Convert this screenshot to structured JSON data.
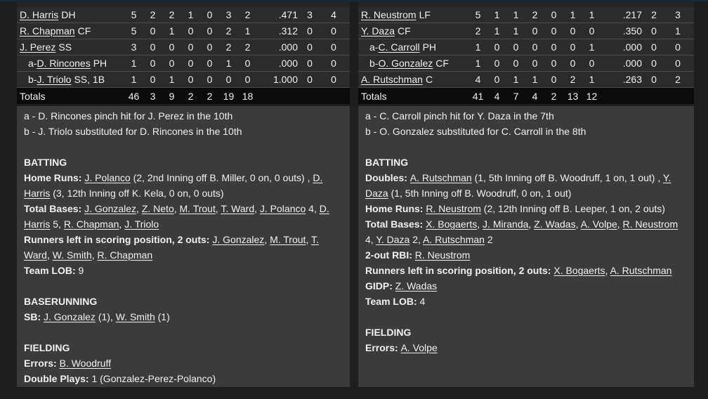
{
  "colors": {
    "page_bg": "#1e1e1e",
    "top_border": "#1a2742",
    "row_bg": "#2b2b2b",
    "row_separator": "#4a4a4a",
    "totals_bg": "#0b0b0b",
    "notes_bg": "#3b3b3b",
    "text": "#f1f1f1"
  },
  "teams": [
    {
      "side": "left",
      "batters": [
        {
          "prefix": "",
          "name": "D. Harris",
          "pos": "DH",
          "indent": false,
          "stats": [
            "5",
            "2",
            "2",
            "1",
            "0",
            "3",
            "2",
            ".471",
            "3",
            "4"
          ]
        },
        {
          "prefix": "",
          "name": "R. Chapman",
          "pos": "CF",
          "indent": false,
          "stats": [
            "5",
            "0",
            "1",
            "0",
            "0",
            "2",
            "1",
            ".312",
            "0",
            "0"
          ]
        },
        {
          "prefix": "",
          "name": "J. Perez",
          "pos": "SS",
          "indent": false,
          "stats": [
            "3",
            "0",
            "0",
            "0",
            "0",
            "2",
            "2",
            ".000",
            "0",
            "0"
          ]
        },
        {
          "prefix": "a-",
          "name": "D. Rincones",
          "pos": "PH",
          "indent": true,
          "stats": [
            "1",
            "0",
            "0",
            "0",
            "0",
            "1",
            "0",
            ".000",
            "0",
            "0"
          ]
        },
        {
          "prefix": "b-",
          "name": "J. Triolo",
          "pos": "SS, 1B",
          "indent": true,
          "stats": [
            "1",
            "0",
            "1",
            "0",
            "0",
            "0",
            "0",
            "1.000",
            "0",
            "0"
          ]
        }
      ],
      "totals": {
        "label": "Totals",
        "stats": [
          "46",
          "3",
          "9",
          "2",
          "2",
          "19",
          "18",
          "",
          "",
          ""
        ]
      },
      "sections": [
        {
          "header": null,
          "entries": [
            [
              {
                "t": "a - D. Rincones pinch hit for J. Perez in the 10th",
                "s": "p"
              }
            ],
            [
              {
                "t": "b - J. Triolo substituted for D. Rincones in the 10th",
                "s": "p"
              }
            ]
          ]
        },
        {
          "header": "BATTING",
          "entries": [
            [
              {
                "t": "Home Runs: ",
                "s": "b"
              },
              {
                "t": "J. Polanco",
                "s": "u"
              },
              {
                "t": " (2, 2nd Inning off B. Miller, 0 on, 0 outs) , ",
                "s": "p"
              },
              {
                "t": "D. Harris",
                "s": "u"
              },
              {
                "t": " (3, 12th Inning off K. Kela, 0 on, 0 outs)",
                "s": "p"
              }
            ],
            [
              {
                "t": "Total Bases: ",
                "s": "b"
              },
              {
                "t": "J. Gonzalez",
                "s": "u"
              },
              {
                "t": ", ",
                "s": "p"
              },
              {
                "t": "Z. Neto",
                "s": "u"
              },
              {
                "t": ", ",
                "s": "p"
              },
              {
                "t": "M. Trout",
                "s": "u"
              },
              {
                "t": ", ",
                "s": "p"
              },
              {
                "t": "T. Ward",
                "s": "u"
              },
              {
                "t": ", ",
                "s": "p"
              },
              {
                "t": "J. Polanco",
                "s": "u"
              },
              {
                "t": " 4, ",
                "s": "p"
              },
              {
                "t": "D. Harris",
                "s": "u"
              },
              {
                "t": " 5, ",
                "s": "p"
              },
              {
                "t": "R. Chapman",
                "s": "u"
              },
              {
                "t": ", ",
                "s": "p"
              },
              {
                "t": "J. Triolo",
                "s": "u"
              }
            ],
            [
              {
                "t": "Runners left in scoring position, 2 outs: ",
                "s": "b"
              },
              {
                "t": "J. Gonzalez",
                "s": "u"
              },
              {
                "t": ", ",
                "s": "p"
              },
              {
                "t": "M. Trout",
                "s": "u"
              },
              {
                "t": ", ",
                "s": "p"
              },
              {
                "t": "T. Ward",
                "s": "u"
              },
              {
                "t": ", ",
                "s": "p"
              },
              {
                "t": "W. Smith",
                "s": "u"
              },
              {
                "t": ", ",
                "s": "p"
              },
              {
                "t": "R. Chapman",
                "s": "u"
              }
            ],
            [
              {
                "t": "Team LOB: ",
                "s": "b"
              },
              {
                "t": "9",
                "s": "p"
              }
            ]
          ]
        },
        {
          "header": "BASERUNNING",
          "entries": [
            [
              {
                "t": "SB: ",
                "s": "b"
              },
              {
                "t": "J. Gonzalez",
                "s": "u"
              },
              {
                "t": " (1), ",
                "s": "p"
              },
              {
                "t": "W. Smith",
                "s": "u"
              },
              {
                "t": " (1)",
                "s": "p"
              }
            ]
          ]
        },
        {
          "header": "FIELDING",
          "entries": [
            [
              {
                "t": "Errors: ",
                "s": "b"
              },
              {
                "t": "B. Woodruff",
                "s": "u"
              }
            ],
            [
              {
                "t": "Double Plays: ",
                "s": "b"
              },
              {
                "t": "1 (Gonzalez-Perez-Polanco)",
                "s": "p"
              }
            ]
          ]
        }
      ]
    },
    {
      "side": "right",
      "batters": [
        {
          "prefix": "",
          "name": "R. Neustrom",
          "pos": "LF",
          "indent": false,
          "stats": [
            "5",
            "1",
            "1",
            "2",
            "0",
            "1",
            "1",
            ".217",
            "2",
            "3"
          ]
        },
        {
          "prefix": "",
          "name": "Y. Daza",
          "pos": "CF",
          "indent": false,
          "stats": [
            "2",
            "1",
            "1",
            "0",
            "0",
            "0",
            "0",
            ".350",
            "0",
            "1"
          ]
        },
        {
          "prefix": "a-",
          "name": "C. Carroll",
          "pos": "PH",
          "indent": true,
          "stats": [
            "1",
            "0",
            "0",
            "0",
            "0",
            "0",
            "1",
            ".000",
            "0",
            "0"
          ]
        },
        {
          "prefix": "b-",
          "name": "O. Gonzalez",
          "pos": "CF",
          "indent": true,
          "stats": [
            "1",
            "0",
            "0",
            "0",
            "0",
            "0",
            "0",
            ".000",
            "0",
            "0"
          ]
        },
        {
          "prefix": "",
          "name": "A. Rutschman",
          "pos": "C",
          "indent": false,
          "stats": [
            "4",
            "0",
            "1",
            "1",
            "0",
            "2",
            "1",
            ".263",
            "0",
            "2"
          ]
        }
      ],
      "totals": {
        "label": "Totals",
        "stats": [
          "41",
          "4",
          "7",
          "4",
          "2",
          "13",
          "12",
          "",
          "",
          ""
        ]
      },
      "sections": [
        {
          "header": null,
          "entries": [
            [
              {
                "t": "a - C. Carroll pinch hit for Y. Daza in the 7th",
                "s": "p"
              }
            ],
            [
              {
                "t": "b - O. Gonzalez substituted for C. Carroll in the 8th",
                "s": "p"
              }
            ]
          ]
        },
        {
          "header": "BATTING",
          "entries": [
            [
              {
                "t": "Doubles: ",
                "s": "b"
              },
              {
                "t": "A. Rutschman",
                "s": "u"
              },
              {
                "t": " (1, 5th Inning off B. Woodruff, 1 on, 1 out) , ",
                "s": "p"
              },
              {
                "t": "Y. Daza",
                "s": "u"
              },
              {
                "t": " (1, 5th Inning off B. Woodruff, 0 on, 1 out)",
                "s": "p"
              }
            ],
            [
              {
                "t": "Home Runs: ",
                "s": "b"
              },
              {
                "t": "R. Neustrom",
                "s": "u"
              },
              {
                "t": " (2, 12th Inning off B. Leeper, 1 on, 2 outs)",
                "s": "p"
              }
            ],
            [
              {
                "t": "Total Bases: ",
                "s": "b"
              },
              {
                "t": "X. Bogaerts",
                "s": "u"
              },
              {
                "t": ", ",
                "s": "p"
              },
              {
                "t": "J. Miranda",
                "s": "u"
              },
              {
                "t": ", ",
                "s": "p"
              },
              {
                "t": "Z. Wadas",
                "s": "u"
              },
              {
                "t": ", ",
                "s": "p"
              },
              {
                "t": "A. Volpe",
                "s": "u"
              },
              {
                "t": ", ",
                "s": "p"
              },
              {
                "t": "R. Neustrom",
                "s": "u"
              },
              {
                "t": " 4, ",
                "s": "p"
              },
              {
                "t": "Y. Daza",
                "s": "u"
              },
              {
                "t": " 2, ",
                "s": "p"
              },
              {
                "t": "A. Rutschman",
                "s": "u"
              },
              {
                "t": " 2",
                "s": "p"
              }
            ],
            [
              {
                "t": "2-out RBI: ",
                "s": "b"
              },
              {
                "t": "R. Neustrom",
                "s": "u"
              }
            ],
            [
              {
                "t": "Runners left in scoring position, 2 outs: ",
                "s": "b"
              },
              {
                "t": "X. Bogaerts",
                "s": "u"
              },
              {
                "t": ", ",
                "s": "p"
              },
              {
                "t": "A. Rutschman",
                "s": "u"
              }
            ],
            [
              {
                "t": "GIDP: ",
                "s": "b"
              },
              {
                "t": "Z. Wadas",
                "s": "u"
              }
            ],
            [
              {
                "t": "Team LOB: ",
                "s": "b"
              },
              {
                "t": "4",
                "s": "p"
              }
            ]
          ]
        },
        {
          "header": "FIELDING",
          "entries": [
            [
              {
                "t": "Errors: ",
                "s": "b"
              },
              {
                "t": "A. Volpe",
                "s": "u"
              }
            ]
          ]
        }
      ]
    }
  ]
}
